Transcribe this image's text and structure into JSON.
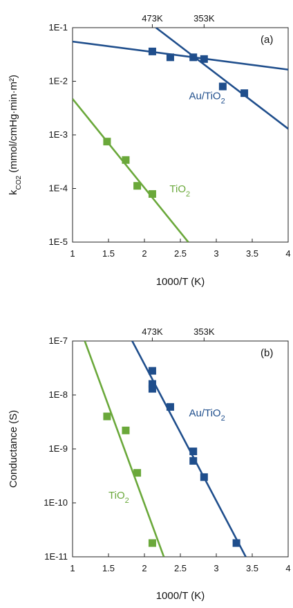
{
  "chart_data": [
    {
      "type": "scatter",
      "panel_label": "(a)",
      "xlabel": "1000/T (K)",
      "ylabel_main": "k",
      "ylabel_sub": "CO2",
      "ylabel_rest": " (mmol/cmHg·min·m²)",
      "log_y": true,
      "xlim": [
        1,
        4
      ],
      "ylim_exponents": [
        -5,
        -1
      ],
      "x_ticks": [
        "1",
        "1.5",
        "2",
        "2.5",
        "3",
        "3.5",
        "4"
      ],
      "y_ticks": [
        "1E-5",
        "1E-4",
        "1E-3",
        "1E-2",
        "1E-1"
      ],
      "top_axis_labels": [
        {
          "label": "473K",
          "x": 2.11
        },
        {
          "label": "353K",
          "x": 2.83
        }
      ],
      "series": [
        {
          "name": "Au/TiO₂",
          "label_main": "Au/TiO",
          "label_sub": "2",
          "label_at": {
            "x": 2.62,
            "y": 0.0046
          },
          "color": "#1f4e8c",
          "points": [
            {
              "x": 2.11,
              "y": 0.036
            },
            {
              "x": 2.36,
              "y": 0.028
            },
            {
              "x": 2.68,
              "y": 0.028
            },
            {
              "x": 2.83,
              "y": 0.026
            },
            {
              "x": 3.09,
              "y": 0.008
            },
            {
              "x": 3.39,
              "y": 0.006
            }
          ],
          "fit_lines": [
            {
              "x": [
                1.0,
                4.0
              ],
              "y": [
                0.055,
                0.0165
              ]
            },
            {
              "x": [
                2.16,
                4.0
              ],
              "y": [
                0.1,
                0.0013
              ]
            }
          ]
        },
        {
          "name": "TiO₂",
          "label_main": "TiO",
          "label_sub": "2",
          "label_at": {
            "x": 2.35,
            "y": 8.5e-05
          },
          "color": "#6aa83a",
          "points": [
            {
              "x": 1.48,
              "y": 0.00075
            },
            {
              "x": 1.74,
              "y": 0.00034
            },
            {
              "x": 1.9,
              "y": 0.000112
            },
            {
              "x": 2.11,
              "y": 7.9e-05
            }
          ],
          "fit_lines": [
            {
              "x": [
                1.0,
                2.61
              ],
              "y": [
                0.0047,
                1e-05
              ]
            }
          ]
        }
      ]
    },
    {
      "type": "scatter",
      "panel_label": "(b)",
      "xlabel": "1000/T (K)",
      "ylabel_main": "Conductance (S)",
      "ylabel_sub": "",
      "ylabel_rest": "",
      "log_y": true,
      "xlim": [
        1,
        4
      ],
      "ylim_exponents": [
        -11,
        -7
      ],
      "x_ticks": [
        "1",
        "1.5",
        "2",
        "2.5",
        "3",
        "3.5",
        "4"
      ],
      "y_ticks": [
        "1E-11",
        "1E-10",
        "1E-9",
        "1E-8",
        "1E-7"
      ],
      "top_axis_labels": [
        {
          "label": "473K",
          "x": 2.11
        },
        {
          "label": "353K",
          "x": 2.83
        }
      ],
      "series": [
        {
          "name": "Au/TiO₂",
          "label_main": "Au/TiO",
          "label_sub": "2",
          "label_at": {
            "x": 2.62,
            "y": 4e-09
          },
          "color": "#1f4e8c",
          "points": [
            {
              "x": 2.11,
              "y": 2.8e-08
            },
            {
              "x": 2.11,
              "y": 1.6e-08
            },
            {
              "x": 2.11,
              "y": 1.3e-08
            },
            {
              "x": 2.36,
              "y": 6e-09
            },
            {
              "x": 2.68,
              "y": 9e-10
            },
            {
              "x": 2.68,
              "y": 6e-10
            },
            {
              "x": 2.83,
              "y": 3e-10
            },
            {
              "x": 3.28,
              "y": 1.8e-11
            }
          ],
          "fit_lines": [
            {
              "x": [
                1.83,
                3.41
              ],
              "y": [
                1e-07,
                1e-11
              ]
            }
          ]
        },
        {
          "name": "TiO₂",
          "label_main": "TiO",
          "label_sub": "2",
          "label_at": {
            "x": 1.5,
            "y": 1.2e-10
          },
          "color": "#6aa83a",
          "points": [
            {
              "x": 1.48,
              "y": 4e-09
            },
            {
              "x": 1.74,
              "y": 2.2e-09
            },
            {
              "x": 1.9,
              "y": 3.6e-10
            },
            {
              "x": 2.11,
              "y": 1.8e-11
            }
          ],
          "fit_lines": [
            {
              "x": [
                1.17,
                2.27
              ],
              "y": [
                1e-07,
                1e-11
              ]
            }
          ]
        }
      ]
    }
  ]
}
